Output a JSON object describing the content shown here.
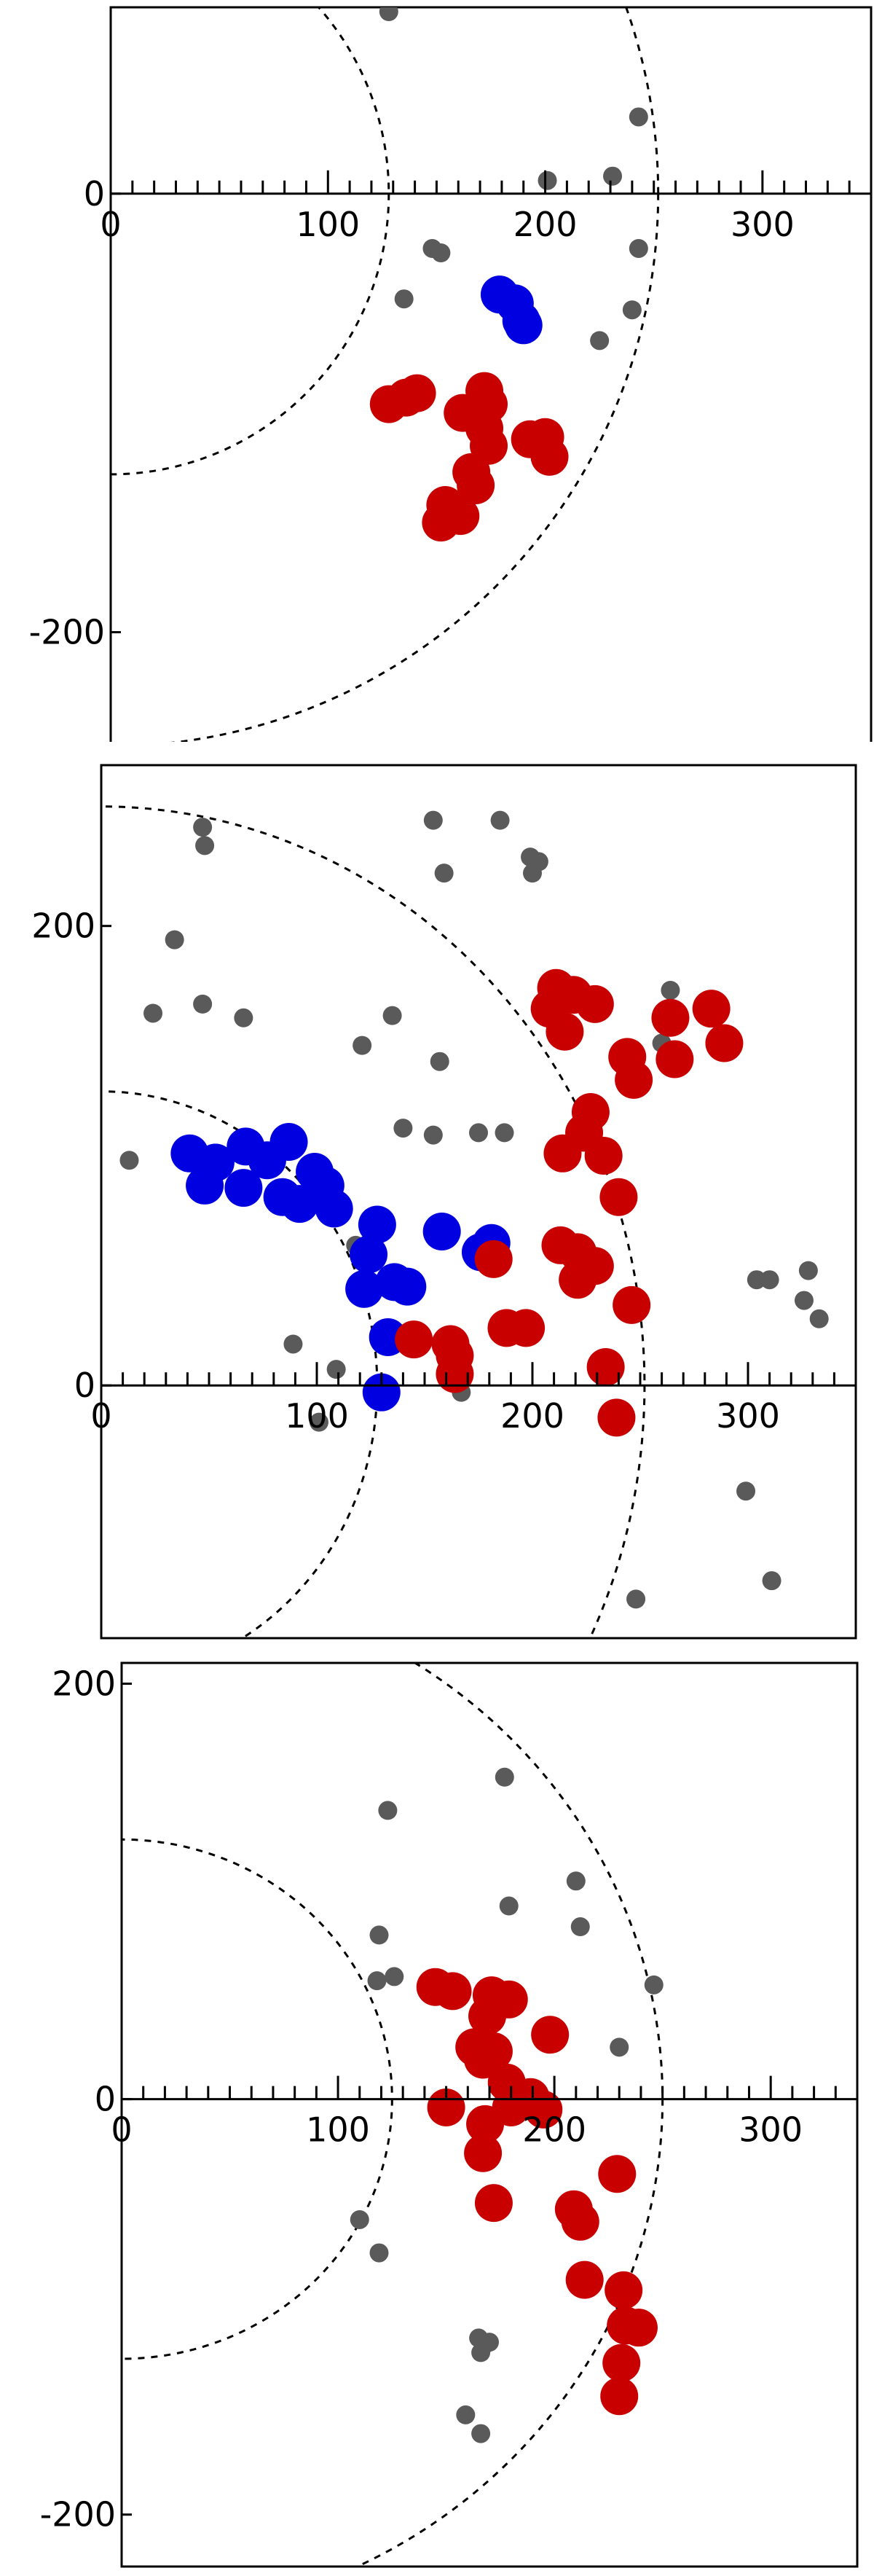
{
  "colors": {
    "gray": "#5a5a5a",
    "blue": "#0000e0",
    "red": "#c80000",
    "axis": "#000000",
    "circle": "#000000"
  },
  "chart_data": [
    {
      "type": "scatter",
      "title": "",
      "xlabel": "",
      "ylabel": "",
      "xlim": [
        0,
        350
      ],
      "ylim": [
        -250,
        85
      ],
      "x_ticks": [
        "0",
        "100",
        "200",
        "300"
      ],
      "y_ticks": [
        "0",
        "-200"
      ],
      "grid": false,
      "reference_circles": [
        {
          "radius": 128,
          "style": "dashed"
        },
        {
          "radius": 252,
          "style": "dashed"
        }
      ],
      "series": [
        {
          "color": "gray",
          "marker_size": "small",
          "points": [
            [
              128,
              83
            ],
            [
              243,
              35
            ],
            [
              201,
              6
            ],
            [
              231,
              8
            ],
            [
              148,
              -25
            ],
            [
              152,
              -27
            ],
            [
              243,
              -25
            ],
            [
              135,
              -48
            ],
            [
              240,
              -53
            ],
            [
              225,
              -67
            ]
          ]
        },
        {
          "color": "blue",
          "marker_size": "large",
          "points": [
            [
              179,
              -46
            ],
            [
              186,
              -50
            ],
            [
              189,
              -58
            ],
            [
              190,
              -60
            ]
          ]
        },
        {
          "color": "red",
          "marker_size": "large",
          "points": [
            [
              128,
              -96
            ],
            [
              136,
              -93
            ],
            [
              141,
              -91
            ],
            [
              172,
              -90
            ],
            [
              174,
              -96
            ],
            [
              162,
              -100
            ],
            [
              172,
              -107
            ],
            [
              174,
              -115
            ],
            [
              193,
              -112
            ],
            [
              200,
              -111
            ],
            [
              202,
              -120
            ],
            [
              166,
              -127
            ],
            [
              168,
              -133
            ],
            [
              154,
              -142
            ],
            [
              152,
              -150
            ],
            [
              161,
              -147
            ]
          ]
        }
      ]
    },
    {
      "type": "scatter",
      "title": "",
      "xlabel": "",
      "ylabel": "",
      "xlim": [
        0,
        350
      ],
      "ylim": [
        -110,
        270
      ],
      "x_ticks": [
        "0",
        "100",
        "200",
        "300"
      ],
      "y_ticks": [
        "0",
        "200"
      ],
      "grid": false,
      "reference_circles": [
        {
          "radius": 128,
          "style": "dashed"
        },
        {
          "radius": 252,
          "style": "dashed"
        }
      ],
      "series": [
        {
          "color": "gray",
          "marker_size": "small",
          "points": [
            [
              47,
              243
            ],
            [
              48,
              235
            ],
            [
              154,
              246
            ],
            [
              159,
              223
            ],
            [
              185,
              246
            ],
            [
              199,
              230
            ],
            [
              200,
              223
            ],
            [
              203,
              228
            ],
            [
              34,
              194
            ],
            [
              24,
              162
            ],
            [
              47,
              166
            ],
            [
              66,
              160
            ],
            [
              121,
              148
            ],
            [
              135,
              161
            ],
            [
              157,
              141
            ],
            [
              264,
              172
            ],
            [
              260,
              149
            ],
            [
              140,
              112
            ],
            [
              154,
              109
            ],
            [
              175,
              110
            ],
            [
              187,
              110
            ],
            [
              13,
              98
            ],
            [
              118,
              61
            ],
            [
              222,
              42
            ],
            [
              304,
              46
            ],
            [
              310,
              46
            ],
            [
              328,
              50
            ],
            [
              326,
              37
            ],
            [
              333,
              29
            ],
            [
              89,
              18
            ],
            [
              109,
              7
            ],
            [
              167,
              -3
            ],
            [
              101,
              -16
            ],
            [
              299,
              -46
            ],
            [
              248,
              -93
            ],
            [
              311,
              -85
            ]
          ]
        },
        {
          "color": "blue",
          "marker_size": "large",
          "points": [
            [
              41,
              101
            ],
            [
              53,
              97
            ],
            [
              48,
              87
            ],
            [
              67,
              104
            ],
            [
              77,
              98
            ],
            [
              66,
              86
            ],
            [
              84,
              82
            ],
            [
              92,
              79
            ],
            [
              87,
              106
            ],
            [
              99,
              93
            ],
            [
              104,
              87
            ],
            [
              108,
              77
            ],
            [
              128,
              70
            ],
            [
              124,
              57
            ],
            [
              122,
              42
            ],
            [
              136,
              45
            ],
            [
              142,
              43
            ],
            [
              158,
              67
            ],
            [
              181,
              62
            ],
            [
              176,
              58
            ],
            [
              133,
              21
            ],
            [
              130,
              -3
            ]
          ]
        },
        {
          "color": "red",
          "marker_size": "large",
          "points": [
            [
              211,
              173
            ],
            [
              208,
              164
            ],
            [
              219,
              170
            ],
            [
              215,
              154
            ],
            [
              229,
              166
            ],
            [
              264,
              160
            ],
            [
              283,
              164
            ],
            [
              289,
              149
            ],
            [
              266,
              142
            ],
            [
              244,
              143
            ],
            [
              247,
              133
            ],
            [
              227,
              119
            ],
            [
              224,
              110
            ],
            [
              214,
              101
            ],
            [
              233,
              100
            ],
            [
              240,
              82
            ],
            [
              213,
              61
            ],
            [
              221,
              58
            ],
            [
              229,
              52
            ],
            [
              221,
              46
            ],
            [
              182,
              55
            ],
            [
              246,
              35
            ],
            [
              188,
              25
            ],
            [
              197,
              25
            ],
            [
              145,
              20
            ],
            [
              162,
              18
            ],
            [
              164,
              13
            ],
            [
              164,
              5
            ],
            [
              234,
              8
            ],
            [
              239,
              -14
            ]
          ]
        }
      ]
    },
    {
      "type": "scatter",
      "title": "",
      "xlabel": "",
      "ylabel": "",
      "xlim": [
        0,
        340
      ],
      "ylim": [
        -225,
        210
      ],
      "x_ticks": [
        "0",
        "100",
        "200",
        "300"
      ],
      "y_ticks": [
        "200",
        "0",
        "-200"
      ],
      "grid": false,
      "reference_circles": [
        {
          "radius": 125,
          "style": "dashed"
        },
        {
          "radius": 250,
          "style": "dashed"
        }
      ],
      "series": [
        {
          "color": "gray",
          "marker_size": "small",
          "points": [
            [
              177,
              155
            ],
            [
              123,
              139
            ],
            [
              210,
              105
            ],
            [
              179,
              93
            ],
            [
              119,
              79
            ],
            [
              212,
              83
            ],
            [
              126,
              59
            ],
            [
              118,
              57
            ],
            [
              246,
              55
            ],
            [
              230,
              25
            ],
            [
              110,
              -58
            ],
            [
              119,
              -74
            ],
            [
              165,
              -115
            ],
            [
              166,
              -122
            ],
            [
              168,
              -118
            ],
            [
              170,
              -117
            ],
            [
              159,
              -152
            ],
            [
              166,
              -161
            ]
          ]
        },
        {
          "color": "red",
          "marker_size": "large",
          "points": [
            [
              145,
              54
            ],
            [
              153,
              52
            ],
            [
              171,
              50
            ],
            [
              179,
              48
            ],
            [
              169,
              40
            ],
            [
              172,
              23
            ],
            [
              167,
              19
            ],
            [
              163,
              25
            ],
            [
              198,
              31
            ],
            [
              178,
              8
            ],
            [
              189,
              1
            ],
            [
              180,
              -4
            ],
            [
              195,
              -5
            ],
            [
              150,
              -4
            ],
            [
              168,
              -12
            ],
            [
              167,
              -26
            ],
            [
              172,
              -50
            ],
            [
              229,
              -36
            ],
            [
              209,
              -53
            ],
            [
              212,
              -59
            ],
            [
              214,
              -87
            ],
            [
              232,
              -92
            ],
            [
              233,
              -109
            ],
            [
              239,
              -110
            ],
            [
              231,
              -127
            ],
            [
              230,
              -143
            ]
          ]
        }
      ]
    }
  ]
}
